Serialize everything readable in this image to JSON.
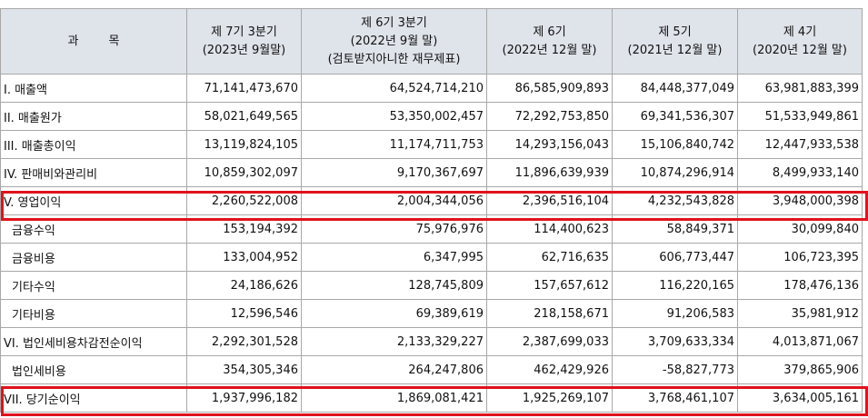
{
  "headers": [
    [
      "과        목"
    ],
    [
      "제 7기 3분기",
      "(2023년 9월말)"
    ],
    [
      "제 6기 3분기",
      "(2022년 9월 말)",
      "(검토받지아니한 재무제표)"
    ],
    [
      "제 6기",
      "(2022년 12월 말)"
    ],
    [
      "제 5기",
      "(2021년 12월 말)"
    ],
    [
      "제 4기",
      "(2020년 12월 말)"
    ]
  ],
  "rows": [
    {
      "label": "I. 매출액",
      "indent": false,
      "values": [
        "71,141,473,670",
        "64,524,714,210",
        "86,585,909,893",
        "84,448,377,049",
        "63,981,883,399"
      ]
    },
    {
      "label": "II. 매출원가",
      "indent": false,
      "values": [
        "58,021,649,565",
        "53,350,002,457",
        "72,292,753,850",
        "69,341,536,307",
        "51,533,949,861"
      ]
    },
    {
      "label": "III. 매출총이익",
      "indent": false,
      "values": [
        "13,119,824,105",
        "11,174,711,753",
        "14,293,156,043",
        "15,106,840,742",
        "12,447,933,538"
      ]
    },
    {
      "label": "IV. 판매비와관리비",
      "indent": false,
      "values": [
        "10,859,302,097",
        "9,170,367,697",
        "11,896,639,939",
        "10,874,296,914",
        "8,499,933,140"
      ]
    },
    {
      "label": "V. 영업이익",
      "indent": false,
      "values": [
        "2,260,522,008",
        "2,004,344,056",
        "2,396,516,104",
        "4,232,543,828",
        "3,948,000,398"
      ]
    },
    {
      "label": "금융수익",
      "indent": true,
      "values": [
        "153,194,392",
        "75,976,976",
        "114,400,623",
        "58,849,371",
        "30,099,840"
      ]
    },
    {
      "label": "금융비용",
      "indent": true,
      "values": [
        "133,004,952",
        "6,347,995",
        "62,716,635",
        "606,773,447",
        "106,723,395"
      ]
    },
    {
      "label": "기타수익",
      "indent": true,
      "values": [
        "24,186,626",
        "128,745,809",
        "157,657,612",
        "116,220,165",
        "178,476,136"
      ]
    },
    {
      "label": "기타비용",
      "indent": true,
      "values": [
        "12,596,546",
        "69,389,619",
        "218,158,671",
        "91,206,583",
        "35,981,912"
      ]
    },
    {
      "label": "VI. 법인세비용차감전순이익",
      "indent": false,
      "values": [
        "2,292,301,528",
        "2,133,329,227",
        "2,387,699,033",
        "3,709,633,334",
        "4,013,871,067"
      ]
    },
    {
      "label": "법인세비용",
      "indent": true,
      "values": [
        "354,305,346",
        "264,247,806",
        "462,429,926",
        "-58,827,773",
        "379,865,906"
      ]
    },
    {
      "label": "VII. 당기순이익",
      "indent": false,
      "values": [
        "1,937,996,182",
        "1,869,081,421",
        "1,925,269,107",
        "3,768,461,107",
        "3,634,005,161"
      ]
    }
  ],
  "highlighted_rows": [
    "V. 영업이익",
    "VII. 당기순이익"
  ],
  "colors": {
    "header_bg": "#dfe3ea",
    "border": "#a8a8a8",
    "highlight": "#e0121c"
  }
}
